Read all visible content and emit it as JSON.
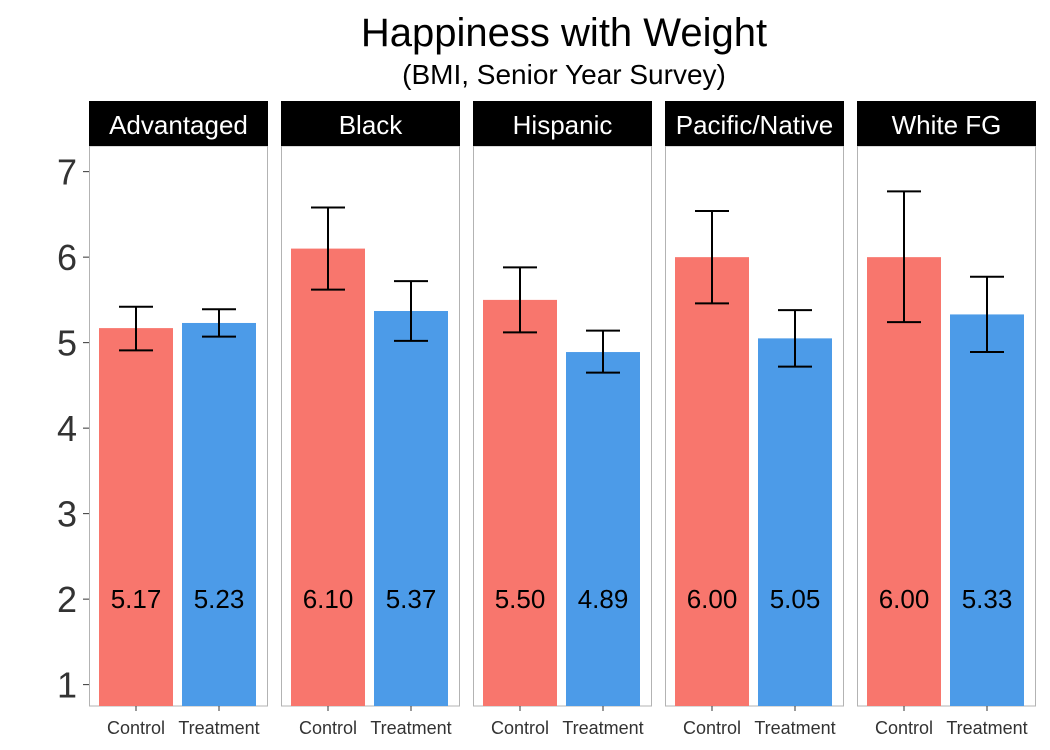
{
  "chart_data": {
    "type": "bar",
    "title": "Happiness with Weight",
    "subtitle": "(BMI, Senior Year Survey)",
    "xlabel": "",
    "ylabel": "",
    "ylim": [
      0.75,
      7.3
    ],
    "yticks": [
      1,
      2,
      3,
      4,
      5,
      6,
      7
    ],
    "grid": false,
    "categories": [
      "Control",
      "Treatment"
    ],
    "colors": {
      "Control": "#F8766D",
      "Treatment": "#4C9BE8"
    },
    "facets": [
      {
        "name": "Advantaged",
        "values": [
          5.17,
          5.23
        ],
        "labels": [
          "5.17",
          "5.23"
        ],
        "error_low": [
          4.91,
          5.07
        ],
        "error_high": [
          5.42,
          5.39
        ]
      },
      {
        "name": "Black",
        "values": [
          6.1,
          5.37
        ],
        "labels": [
          "6.10",
          "5.37"
        ],
        "error_low": [
          5.62,
          5.02
        ],
        "error_high": [
          6.58,
          5.72
        ]
      },
      {
        "name": "Hispanic",
        "values": [
          5.5,
          4.89
        ],
        "labels": [
          "5.50",
          "4.89"
        ],
        "error_low": [
          5.12,
          4.65
        ],
        "error_high": [
          5.88,
          5.14
        ]
      },
      {
        "name": "Pacific/Native",
        "values": [
          6.0,
          5.05
        ],
        "labels": [
          "6.00",
          "5.05"
        ],
        "error_low": [
          5.46,
          4.72
        ],
        "error_high": [
          6.54,
          5.38
        ]
      },
      {
        "name": "White FG",
        "values": [
          6.0,
          5.33
        ],
        "labels": [
          "6.00",
          "5.33"
        ],
        "error_low": [
          5.24,
          4.89
        ],
        "error_high": [
          6.77,
          5.77
        ]
      }
    ]
  }
}
